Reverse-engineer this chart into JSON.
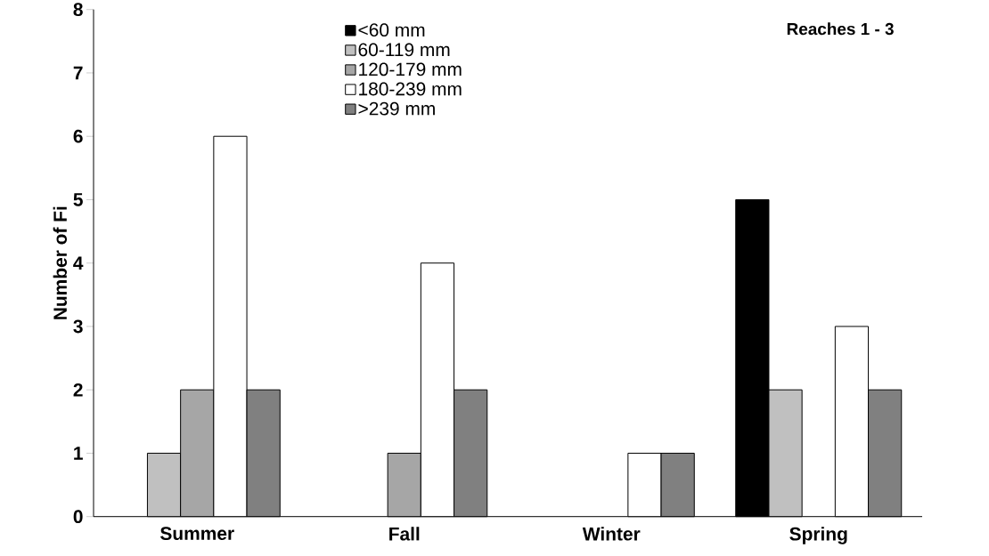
{
  "chart_data": {
    "type": "bar",
    "title": "Reaches 1 - 3",
    "ylabel": "Number of Fi",
    "categories": [
      "Summer",
      "Fall",
      "Winter",
      "Spring"
    ],
    "series": [
      {
        "name": "<60 mm",
        "color": "#000000",
        "values": [
          null,
          null,
          null,
          5
        ]
      },
      {
        "name": "60-119 mm",
        "color": "#c0c0c0",
        "values": [
          1,
          null,
          null,
          2
        ]
      },
      {
        "name": "120-179 mm",
        "color": "#a6a6a6",
        "values": [
          2,
          1,
          null,
          null
        ]
      },
      {
        "name": "180-239 mm",
        "color": "#ffffff",
        "values": [
          6,
          4,
          1,
          3
        ]
      },
      {
        "name": ">239 mm",
        "color": "#808080",
        "values": [
          2,
          2,
          1,
          2
        ]
      }
    ],
    "ylim": [
      0,
      8
    ],
    "yticks": [
      0,
      1,
      2,
      3,
      4,
      5,
      6,
      7,
      8
    ],
    "legend": "top"
  }
}
